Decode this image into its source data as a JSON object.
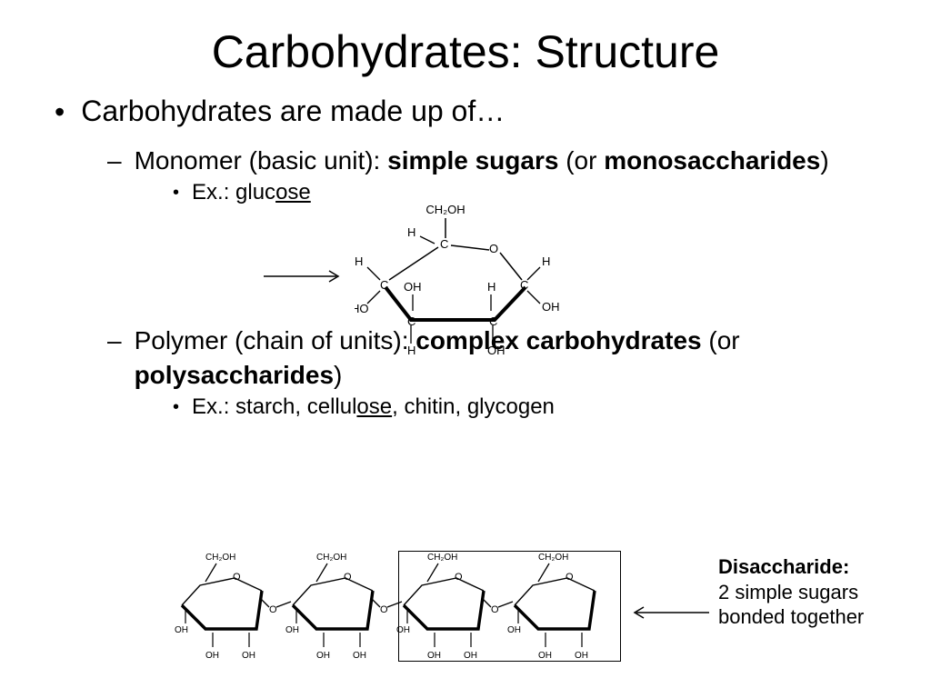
{
  "title": "Carbohydrates: Structure",
  "intro": "Carbohydrates are made up of…",
  "monomer": {
    "prefix": "Monomer (basic unit): ",
    "bold1": "simple sugars",
    "mid": " (or ",
    "bold2": "monosaccharides",
    "suffix": ")",
    "example_label": "Ex.: gluc",
    "example_underlined": "ose"
  },
  "polymer": {
    "prefix": "Polymer (chain of units): ",
    "bold1": "complex carbohydrates",
    "mid": " (or ",
    "bold2": "polysaccharides",
    "suffix": ")",
    "example_label": "Ex.: starch, cellul",
    "example_underlined": "ose",
    "example_rest": ", chitin, glycogen"
  },
  "disaccharide": {
    "bold": "Disaccharide:",
    "text": "2 simple sugars bonded together"
  },
  "glucose_diagram": {
    "labels": {
      "top": "CH₂OH",
      "ring": [
        "C",
        "C",
        "C",
        "C",
        "C",
        "O"
      ],
      "substituents": [
        "H",
        "OH",
        "H",
        "OH",
        "H",
        "OH",
        "HO",
        "H"
      ]
    },
    "colors": {
      "stroke": "#000000",
      "text": "#000000"
    },
    "line_width": 1.5,
    "bold_line_width": 3.5,
    "font_size_small": 12
  },
  "chain_diagram": {
    "unit_count": 4,
    "link": "O",
    "unit_labels": {
      "top": "CH₂OH",
      "sub": [
        "OH",
        "OH",
        "OH"
      ]
    },
    "colors": {
      "stroke": "#000000"
    },
    "line_width": 1.4,
    "bold_line_width": 3.2,
    "font_size_small": 10
  },
  "styling": {
    "background": "#ffffff",
    "text_color": "#000000",
    "title_fontsize": 50,
    "l1_fontsize": 32,
    "l2_fontsize": 28,
    "l3_fontsize": 24,
    "disacc_fontsize": 22,
    "font_family": "Arial"
  }
}
